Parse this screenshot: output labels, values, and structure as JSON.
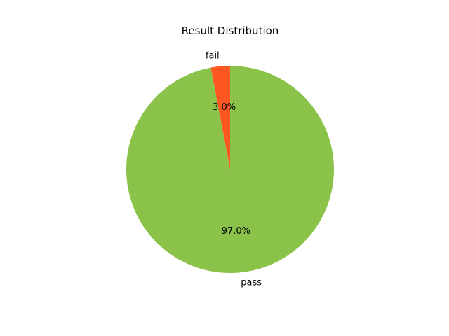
{
  "chart_data": {
    "type": "pie",
    "title": "Result Distribution",
    "slices": [
      {
        "label": "fail",
        "value": 3.0,
        "pct_label": "3.0%",
        "color": "#ff5722"
      },
      {
        "label": "pass",
        "value": 97.0,
        "pct_label": "97.0%",
        "color": "#8bc34a"
      }
    ],
    "start_angle": "top",
    "direction": "counterclockwise"
  }
}
